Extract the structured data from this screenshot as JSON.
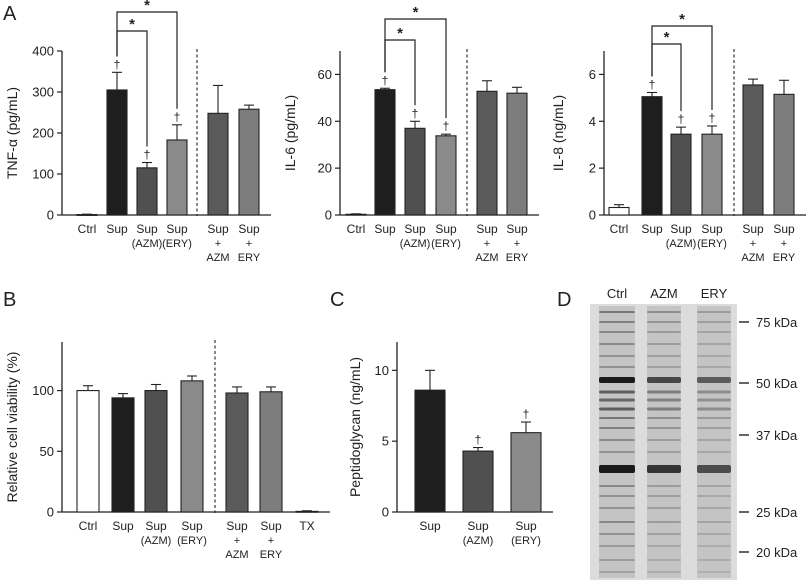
{
  "panels": [
    {
      "id": "A",
      "letter": "A"
    },
    {
      "id": "B",
      "letter": "B"
    },
    {
      "id": "C",
      "letter": "C"
    },
    {
      "id": "D",
      "letter": "D"
    }
  ],
  "colors": {
    "Ctrl": "#ffffff",
    "Sup": "#1e1e1e",
    "Sup (AZM)": "#505050",
    "Sup (ERY)": "#8a8a8a",
    "Sup + AZM": "#5a5a5a",
    "Sup + ERY": "#7d7d7d",
    "TX": "#ffffff",
    "axis": "#222222"
  },
  "chart_data": [
    {
      "panel": "A",
      "type": "bar",
      "ylabel": "TNF-α (pg/mL)",
      "ylim": [
        0,
        400
      ],
      "yticks": [
        0,
        100,
        200,
        300,
        400
      ],
      "categories": [
        "Ctrl",
        "Sup",
        "Sup (AZM)",
        "Sup (ERY)",
        "Sup + AZM",
        "Sup + ERY"
      ],
      "category_labels": [
        [
          "Ctrl"
        ],
        [
          "Sup"
        ],
        [
          "Sup",
          "(AZM)"
        ],
        [
          "Sup",
          "(ERY)"
        ],
        [
          "Sup",
          "+",
          "AZM"
        ],
        [
          "Sup",
          "+",
          "ERY"
        ]
      ],
      "values": [
        1,
        305,
        115,
        183,
        248,
        258
      ],
      "errors": [
        1,
        43,
        13,
        37,
        68,
        10
      ],
      "marks": [
        "",
        "†",
        "†",
        "†",
        "",
        ""
      ],
      "significance": [
        {
          "from": "Sup",
          "to": "Sup (AZM)",
          "label": "*"
        },
        {
          "from": "Sup",
          "to": "Sup (ERY)",
          "label": "*"
        }
      ],
      "separator_after": "Sup (ERY)"
    },
    {
      "panel": "A",
      "type": "bar",
      "ylabel": "IL-6 (pg/mL)",
      "ylim": [
        0,
        70
      ],
      "yticks": [
        0,
        20,
        40,
        60
      ],
      "categories": [
        "Ctrl",
        "Sup",
        "Sup (AZM)",
        "Sup (ERY)",
        "Sup + AZM",
        "Sup + ERY"
      ],
      "category_labels": [
        [
          "Ctrl"
        ],
        [
          "Sup"
        ],
        [
          "Sup",
          "(AZM)"
        ],
        [
          "Sup",
          "(ERY)"
        ],
        [
          "Sup",
          "+",
          "AZM"
        ],
        [
          "Sup",
          "+",
          "ERY"
        ]
      ],
      "values": [
        0.3,
        53.5,
        37,
        33.8,
        52.8,
        52
      ],
      "errors": [
        0.2,
        0.6,
        3,
        0.7,
        4.5,
        2.5
      ],
      "marks": [
        "",
        "†",
        "†",
        "†",
        "",
        ""
      ],
      "significance": [
        {
          "from": "Sup",
          "to": "Sup (AZM)",
          "label": "*"
        },
        {
          "from": "Sup",
          "to": "Sup (ERY)",
          "label": "*"
        }
      ],
      "separator_after": "Sup (ERY)"
    },
    {
      "panel": "A",
      "type": "bar",
      "ylabel": "IL-8 (ng/mL)",
      "ylim": [
        0,
        7
      ],
      "yticks": [
        0,
        2,
        4,
        6
      ],
      "categories": [
        "Ctrl",
        "Sup",
        "Sup (AZM)",
        "Sup (ERY)",
        "Sup + AZM",
        "Sup + ERY"
      ],
      "category_labels": [
        [
          "Ctrl"
        ],
        [
          "Sup"
        ],
        [
          "Sup",
          "(AZM)"
        ],
        [
          "Sup",
          "(ERY)"
        ],
        [
          "Sup",
          "+",
          "AZM"
        ],
        [
          "Sup",
          "+",
          "ERY"
        ]
      ],
      "values": [
        0.32,
        5.05,
        3.45,
        3.45,
        5.55,
        5.15
      ],
      "errors": [
        0.12,
        0.18,
        0.3,
        0.35,
        0.25,
        0.6
      ],
      "marks": [
        "",
        "†",
        "†",
        "†",
        "",
        ""
      ],
      "significance": [
        {
          "from": "Sup",
          "to": "Sup (AZM)",
          "label": "*"
        },
        {
          "from": "Sup",
          "to": "Sup (ERY)",
          "label": "*"
        }
      ],
      "separator_after": "Sup (ERY)"
    },
    {
      "panel": "B",
      "type": "bar",
      "ylabel": "Relative cell viability (%)",
      "ylim": [
        0,
        140
      ],
      "yticks": [
        0,
        50,
        100
      ],
      "categories": [
        "Ctrl",
        "Sup",
        "Sup (AZM)",
        "Sup (ERY)",
        "Sup + AZM",
        "Sup + ERY",
        "TX"
      ],
      "category_labels": [
        [
          "Ctrl"
        ],
        [
          "Sup"
        ],
        [
          "Sup",
          "(AZM)"
        ],
        [
          "Sup",
          "(ERY)"
        ],
        [
          "Sup",
          "+",
          "AZM"
        ],
        [
          "Sup",
          "+",
          "ERY"
        ],
        [
          "TX"
        ]
      ],
      "values": [
        100,
        94,
        100,
        108,
        98,
        99,
        0.5
      ],
      "errors": [
        4,
        3.5,
        5,
        4,
        5,
        4,
        0.5
      ],
      "marks": [
        "",
        "",
        "",
        "",
        "",
        "",
        ""
      ],
      "significance": [],
      "separator_after": "Sup (ERY)"
    },
    {
      "panel": "C",
      "type": "bar",
      "ylabel": "Peptidoglycan (ng/mL)",
      "ylim": [
        0,
        12
      ],
      "yticks": [
        0,
        5,
        10
      ],
      "categories": [
        "Sup",
        "Sup (AZM)",
        "Sup (ERY)"
      ],
      "category_labels": [
        [
          "Sup"
        ],
        [
          "Sup",
          "(AZM)"
        ],
        [
          "Sup",
          "(ERY)"
        ]
      ],
      "values": [
        8.6,
        4.3,
        5.6
      ],
      "errors": [
        1.4,
        0.25,
        0.75
      ],
      "marks": [
        "",
        "†",
        "†"
      ],
      "significance": [],
      "separator_after": null
    }
  ],
  "blot": {
    "lanes": [
      "Ctrl",
      "AZM",
      "ERY"
    ],
    "markers": [
      "75 kDa",
      "50 kDa",
      "37 kDa",
      "25 kDa",
      "20 kDa"
    ]
  }
}
